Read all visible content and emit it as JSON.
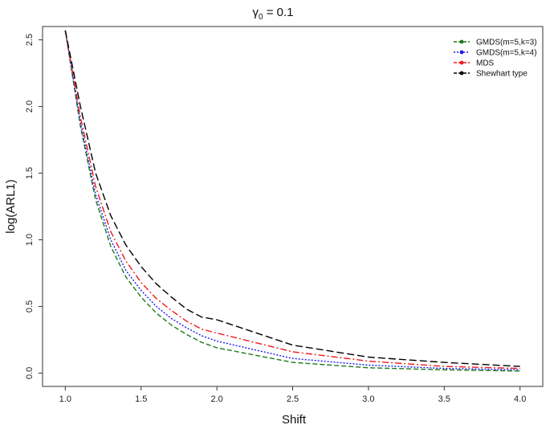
{
  "chart_data": {
    "type": "line",
    "title_greek": "γ",
    "title_sub": "0",
    "title_rest": " = 0.1",
    "xlabel": "Shift",
    "ylabel": "log(ARL1)",
    "xlim": [
      0.85,
      4.15
    ],
    "ylim": [
      -0.1,
      2.6
    ],
    "xticks": [
      1.0,
      1.5,
      2.0,
      2.5,
      3.0,
      3.5,
      4.0
    ],
    "xtick_labels": [
      "1.0",
      "1.5",
      "2.0",
      "2.5",
      "3.0",
      "3.5",
      "4.0"
    ],
    "yticks": [
      0.0,
      0.5,
      1.0,
      1.5,
      2.0,
      2.5
    ],
    "ytick_labels": [
      "0.0",
      "0.5",
      "1.0",
      "1.5",
      "2.0",
      "2.5"
    ],
    "legend_position": "top-right",
    "grid": false,
    "x": [
      1.0,
      1.1,
      1.2,
      1.3,
      1.4,
      1.5,
      1.6,
      1.7,
      1.8,
      1.9,
      2.0,
      2.5,
      3.0,
      3.5,
      4.0
    ],
    "series": [
      {
        "name": "GMDS(m=5,k=3)",
        "color": "#1a7a1a",
        "dash": "6,3",
        "values": [
          2.57,
          1.85,
          1.3,
          0.95,
          0.72,
          0.57,
          0.45,
          0.36,
          0.29,
          0.23,
          0.19,
          0.08,
          0.04,
          0.025,
          0.015
        ]
      },
      {
        "name": "GMDS(m=5,k=4)",
        "color": "#1a1aee",
        "dash": "2,2",
        "values": [
          2.57,
          1.88,
          1.34,
          1.0,
          0.77,
          0.62,
          0.5,
          0.41,
          0.34,
          0.28,
          0.24,
          0.11,
          0.06,
          0.035,
          0.025
        ]
      },
      {
        "name": "MDS",
        "color": "#ee1a1a",
        "dash": "8,3,2,3",
        "values": [
          2.57,
          1.92,
          1.4,
          1.06,
          0.84,
          0.68,
          0.56,
          0.47,
          0.39,
          0.33,
          0.3,
          0.16,
          0.09,
          0.05,
          0.035
        ]
      },
      {
        "name": "Shewhart type",
        "color": "#000000",
        "dash": "9,4",
        "values": [
          2.57,
          2.0,
          1.5,
          1.18,
          0.96,
          0.8,
          0.67,
          0.57,
          0.48,
          0.42,
          0.4,
          0.21,
          0.12,
          0.08,
          0.05
        ]
      }
    ]
  }
}
